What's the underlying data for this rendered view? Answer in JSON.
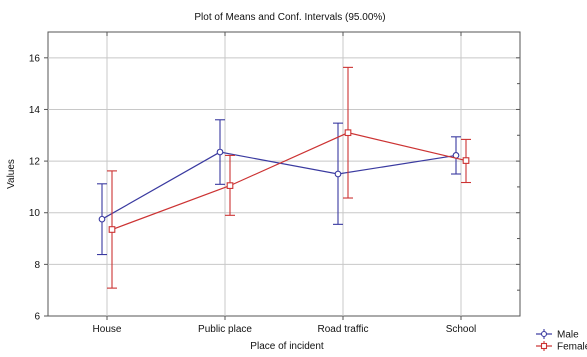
{
  "chart_data": {
    "type": "line",
    "title": "Plot of Means and Conf. Intervals (95.00%)",
    "xlabel": "Place of incident",
    "ylabel": "Values",
    "categories": [
      "House",
      "Public place",
      "Road traffic",
      "School"
    ],
    "ylim": [
      6,
      17
    ],
    "yticks": [
      6,
      8,
      10,
      12,
      14,
      16
    ],
    "grid": true,
    "legend_position": "bottom-right",
    "series": [
      {
        "name": "Male",
        "color": "#3a3aa0",
        "marker": "circle",
        "values": [
          9.75,
          12.35,
          11.5,
          12.22
        ],
        "lower": [
          8.38,
          11.1,
          9.55,
          11.5
        ],
        "upper": [
          11.12,
          13.6,
          13.47,
          12.94
        ]
      },
      {
        "name": "Female",
        "color": "#cc3333",
        "marker": "square",
        "values": [
          9.35,
          11.05,
          13.1,
          12.02
        ],
        "lower": [
          7.08,
          9.9,
          10.57,
          11.17
        ],
        "upper": [
          11.62,
          12.22,
          15.63,
          12.84
        ]
      }
    ]
  }
}
